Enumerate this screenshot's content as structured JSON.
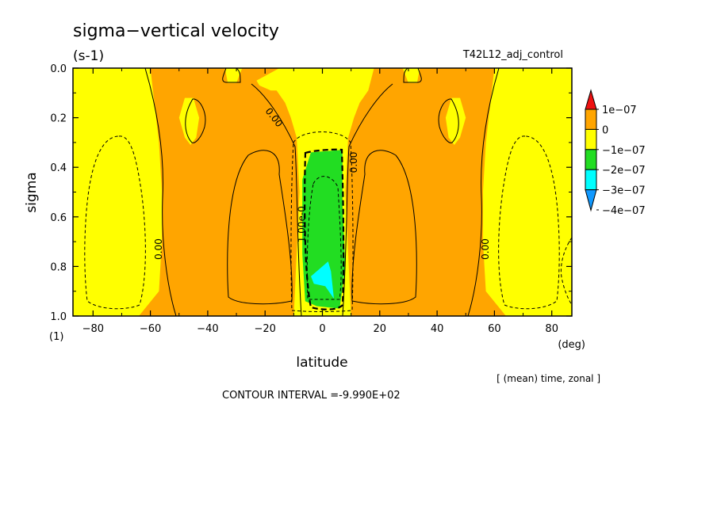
{
  "chart_data": {
    "type": "heatmap",
    "title": "sigma−vertical velocity",
    "units": "(s-1)",
    "run_label": "T42L12_adj_control",
    "xlabel": "latitude",
    "x_unit": "(deg)",
    "ylabel": "sigma",
    "y_unit": "(1)",
    "xlim": [
      -87,
      87
    ],
    "ylim": [
      0.0,
      1.0
    ],
    "y_inverted": true,
    "x_ticks": [
      -80,
      -60,
      -40,
      -20,
      0,
      20,
      40,
      60,
      80
    ],
    "x_tick_labels": [
      "−80",
      "−60",
      "−40",
      "−20",
      "0",
      "20",
      "40",
      "60",
      "80"
    ],
    "y_ticks": [
      0.0,
      0.2,
      0.4,
      0.6,
      0.8,
      1.0
    ],
    "y_tick_labels": [
      "0.0",
      "0.2",
      "0.4",
      "0.6",
      "0.8",
      "1.0"
    ],
    "averaging_note": "[ (mean) time, zonal ]",
    "contour_interval_text": "CONTOUR INTERVAL =-9.990E+02",
    "contour_labels": [
      {
        "text": "0.00",
        "lat": -57,
        "sigma": 0.73,
        "angle": -90
      },
      {
        "text": "0.00",
        "lat": 57,
        "sigma": 0.73,
        "angle": -90
      },
      {
        "text": "0.00",
        "lat": -17,
        "sigma": 0.2,
        "angle": 52
      },
      {
        "text": "0.00",
        "lat": 11,
        "sigma": 0.38,
        "angle": -90
      },
      {
        "text": "1.00e-0",
        "lat": -7,
        "sigma": 0.63,
        "angle": -90
      }
    ],
    "legend": {
      "placement": "right",
      "levels": [
        "1e−07",
        "0",
        "−1e−07",
        "−2e−07",
        "−3e−07",
        "−4e−07"
      ],
      "colors": [
        "#ee1111",
        "#ffa500",
        "#ffff00",
        "#22dd22",
        "#00ffff",
        "#1199ff"
      ]
    },
    "fill_colors": {
      "positive": "#ffa500",
      "negative_small": "#ffff00",
      "negative_medium": "#22dd22",
      "negative_large": "#00ffff"
    },
    "regions": [
      {
        "level": "negative_small",
        "lat": [
          -87,
          -60,
          -59,
          -57,
          -56,
          -56,
          -57,
          -64,
          -74,
          -87
        ],
        "sigma": [
          0.0,
          0.0,
          0.1,
          0.3,
          0.5,
          0.7,
          0.9,
          1.0,
          1.0,
          1.0
        ]
      },
      {
        "level": "negative_small",
        "lat": [
          87,
          60,
          59,
          57,
          56,
          56,
          57,
          64,
          74,
          87
        ],
        "sigma": [
          0.0,
          0.0,
          0.1,
          0.3,
          0.5,
          0.7,
          0.9,
          1.0,
          1.0,
          1.0
        ]
      },
      {
        "level": "negative_small",
        "lat": [
          -18,
          18,
          16,
          13,
          11,
          9,
          8,
          10,
          -10,
          -8,
          -9,
          -11,
          -13,
          -16,
          -18,
          -22,
          -23,
          -15
        ],
        "sigma": [
          0.0,
          0.0,
          0.09,
          0.14,
          0.2,
          0.28,
          0.5,
          1.0,
          1.0,
          0.5,
          0.28,
          0.2,
          0.14,
          0.09,
          0.09,
          0.07,
          0.05,
          0.0
        ]
      },
      {
        "level": "negative_small",
        "lat": [
          -34,
          -28,
          -30,
          -33
        ],
        "sigma": [
          0.0,
          0.0,
          0.06,
          0.06
        ]
      },
      {
        "level": "negative_small",
        "lat": [
          28,
          34,
          33,
          30
        ],
        "sigma": [
          0.0,
          0.0,
          0.06,
          0.06
        ]
      },
      {
        "level": "negative_small",
        "lat": [
          -48,
          -45,
          -43,
          -44,
          -46,
          -48,
          -50
        ],
        "sigma": [
          0.12,
          0.12,
          0.2,
          0.28,
          0.31,
          0.28,
          0.2
        ]
      },
      {
        "level": "negative_small",
        "lat": [
          48,
          45,
          43,
          44,
          46,
          48,
          50
        ],
        "sigma": [
          0.12,
          0.12,
          0.2,
          0.28,
          0.31,
          0.28,
          0.2
        ]
      },
      {
        "level": "negative_medium",
        "lat": [
          -4,
          7,
          7,
          8,
          6,
          -2,
          -6,
          -7,
          -7
        ],
        "sigma": [
          0.34,
          0.33,
          0.55,
          0.8,
          0.97,
          0.96,
          0.94,
          0.75,
          0.45
        ]
      },
      {
        "level": "negative_large",
        "lat": [
          -4,
          2,
          3,
          4,
          1,
          -3
        ],
        "sigma": [
          0.84,
          0.78,
          0.82,
          0.93,
          0.88,
          0.87
        ]
      }
    ]
  }
}
